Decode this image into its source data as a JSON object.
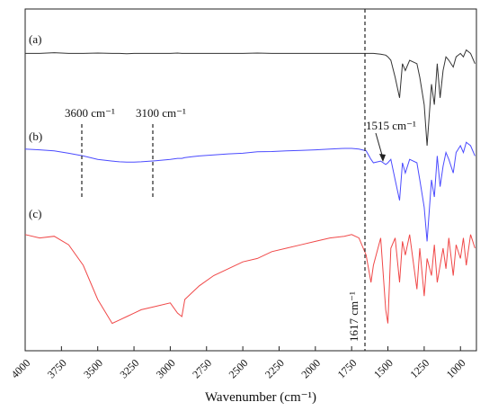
{
  "chart_data": {
    "type": "line",
    "xlabel": "Wavenumber (cm⁻¹)",
    "xlim": [
      4000,
      890
    ],
    "xticks": [
      4000,
      3750,
      3500,
      3250,
      3000,
      2750,
      2500,
      2250,
      2000,
      1750,
      1500,
      1250,
      1000
    ],
    "ylim": [
      0,
      100
    ],
    "annotations": [
      "(a)",
      "(b)",
      "(c)",
      "3600 cm⁻¹",
      "3100 cm⁻¹",
      "1515 cm⁻¹",
      "1617 cm⁻¹"
    ],
    "x": [
      4000,
      3900,
      3800,
      3700,
      3600,
      3500,
      3400,
      3350,
      3300,
      3250,
      3200,
      3100,
      3000,
      2950,
      2920,
      2900,
      2850,
      2800,
      2700,
      2600,
      2500,
      2400,
      2300,
      2200,
      2100,
      2000,
      1900,
      1800,
      1750,
      1700,
      1650,
      1617,
      1600,
      1550,
      1515,
      1500,
      1480,
      1450,
      1420,
      1400,
      1380,
      1350,
      1300,
      1280,
      1250,
      1230,
      1200,
      1180,
      1160,
      1140,
      1120,
      1100,
      1080,
      1050,
      1030,
      1000,
      980,
      960,
      930,
      900
    ],
    "series": [
      {
        "name": "(a)",
        "color": "#333333",
        "values": [
          87,
          87,
          87.2,
          87,
          87,
          87.1,
          87,
          87,
          86.9,
          87,
          87,
          87,
          87,
          87.1,
          87,
          87,
          87,
          87,
          87,
          87,
          87,
          87.1,
          87,
          87,
          87,
          87,
          87,
          87,
          87,
          87,
          87,
          87,
          87,
          86.8,
          86.5,
          86,
          85,
          80,
          74,
          84,
          82,
          85,
          84,
          80,
          72,
          60,
          78,
          72,
          84,
          74,
          82,
          86,
          85,
          83,
          86,
          87,
          86,
          88,
          87,
          84
        ]
      },
      {
        "name": "(b)",
        "color": "#4b4bff",
        "values": [
          59,
          58.8,
          58.5,
          57.8,
          57,
          56,
          55.5,
          55.3,
          55.2,
          55.2,
          55.3,
          55.6,
          56,
          56.3,
          56.3,
          56.5,
          56.8,
          57,
          57.3,
          57.6,
          57.8,
          58.2,
          58.3,
          58.5,
          58.6,
          58.8,
          59,
          59.2,
          59.2,
          59,
          58.5,
          56,
          55,
          55.5,
          54.5,
          55,
          56,
          50,
          44,
          55,
          52,
          56,
          55,
          50,
          42,
          32,
          50,
          45,
          57,
          48,
          54,
          58,
          56,
          52,
          58,
          60,
          58,
          61,
          60,
          57
        ]
      },
      {
        "name": "(c)",
        "color": "#f04848",
        "values": [
          34,
          33,
          33.5,
          31,
          25,
          15,
          8,
          9,
          10,
          11,
          12,
          13,
          14,
          11,
          10,
          15,
          17,
          19,
          22,
          24,
          26,
          27,
          29,
          30,
          31,
          32,
          33,
          33.5,
          34,
          33,
          28,
          20,
          25,
          33,
          12,
          8,
          30,
          33,
          20,
          32,
          28,
          34,
          18,
          30,
          16,
          27,
          22,
          31,
          20,
          25,
          30,
          24,
          33,
          22,
          31,
          27,
          33,
          25,
          34,
          30
        ]
      }
    ]
  }
}
